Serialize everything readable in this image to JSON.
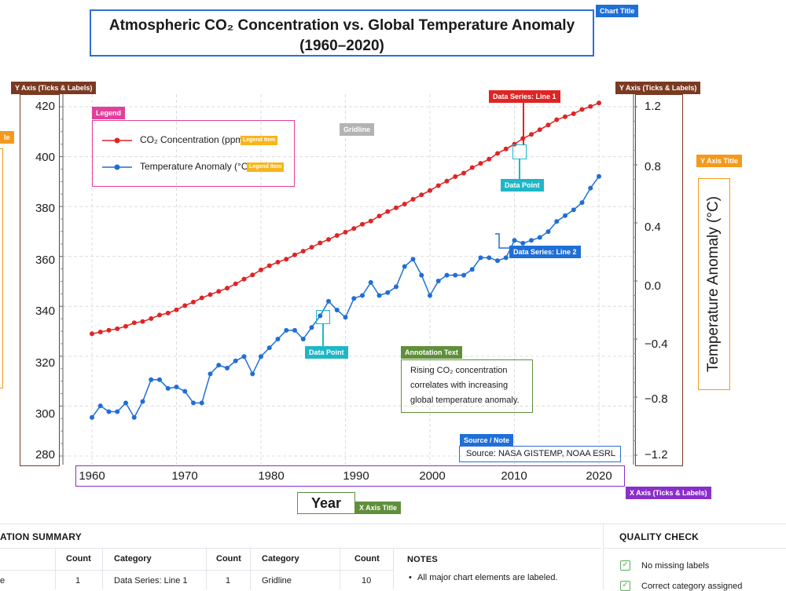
{
  "title_tag": "Chart Title",
  "title_line1": "Atmospheric CO₂ Concentration vs. Global Temperature Anomaly",
  "title_line2": "(1960–2020)",
  "tags": {
    "y_axis_left": "Y Axis (Ticks & Labels)",
    "y_axis_right": "Y Axis (Ticks & Labels)",
    "y_title_left": "le",
    "y_title_right": "Y Axis Title",
    "legend": "Legend",
    "legend_item": "Legend Item",
    "gridline": "Gridline",
    "series1": "Data Series: Line 1",
    "series2": "Data Series: Line 2",
    "data_point": "Data Point",
    "annotation": "Annotation Text",
    "source": "Source / Note",
    "x_axis": "X Axis (Ticks & Labels)",
    "x_title": "X Axis Title"
  },
  "legend": {
    "item1": "CO₂ Concentration (ppm)",
    "item2": "Temperature Anomaly (°C)"
  },
  "annotation_text": "Rising CO₂ concentration correlates with increasing global temperature anomaly.",
  "source_text": "Source: NASA GISTEMP, NOAA ESRL",
  "colors": {
    "co2": "#e02424",
    "temp": "#1f6fd6"
  },
  "chart_data": {
    "type": "line",
    "title": "Atmospheric CO₂ Concentration vs. Global Temperature Anomaly (1960–2020)",
    "xlabel": "Year",
    "ylabel": "",
    "ylabel_right": "Temperature Anomaly (°C)",
    "xlim": [
      1960,
      2020
    ],
    "xticks": [
      1960,
      1970,
      1980,
      1990,
      2000,
      2010,
      2020
    ],
    "ylim_left": [
      280,
      420
    ],
    "yticks_left": [
      280,
      300,
      320,
      340,
      360,
      380,
      400,
      420
    ],
    "ylim_right": [
      -1.2,
      1.2
    ],
    "yticks_right": [
      "1.2",
      "0.8",
      "0.4",
      "0.0",
      "−0.4",
      "−0.8",
      "−1.2"
    ],
    "yticks_right_values": [
      1.2,
      0.8,
      0.4,
      0.0,
      -0.4,
      -0.8,
      -1.2
    ],
    "grid": true,
    "legend_position": "top-left",
    "x": [
      1960,
      1961,
      1962,
      1963,
      1964,
      1965,
      1966,
      1967,
      1968,
      1969,
      1970,
      1971,
      1972,
      1973,
      1974,
      1975,
      1976,
      1977,
      1978,
      1979,
      1980,
      1981,
      1982,
      1983,
      1984,
      1985,
      1986,
      1987,
      1988,
      1989,
      1990,
      1991,
      1992,
      1993,
      1994,
      1995,
      1996,
      1997,
      1998,
      1999,
      2000,
      2001,
      2002,
      2003,
      2004,
      2005,
      2006,
      2007,
      2008,
      2009,
      2010,
      2011,
      2012,
      2013,
      2014,
      2015,
      2016,
      2017,
      2018,
      2019,
      2020
    ],
    "series": [
      {
        "name": "CO₂ Concentration (ppm)",
        "axis": "left",
        "values": [
          329.0,
          329.7,
          330.4,
          331.0,
          332.0,
          333.4,
          333.9,
          335.1,
          336.5,
          337.3,
          338.6,
          340.3,
          341.7,
          343.4,
          344.7,
          346.0,
          347.3,
          349.0,
          350.9,
          352.6,
          354.6,
          356.3,
          357.7,
          358.9,
          360.6,
          362.1,
          363.7,
          365.4,
          366.8,
          368.4,
          369.7,
          371.2,
          372.9,
          374.2,
          376.2,
          378.0,
          379.5,
          381.0,
          382.9,
          384.7,
          386.4,
          388.4,
          390.2,
          392.0,
          393.4,
          395.6,
          397.3,
          399.0,
          401.3,
          403.1,
          405.0,
          407.3,
          408.9,
          410.8,
          412.7,
          414.8,
          416.0,
          417.2,
          418.9,
          420.1,
          421.5
        ]
      },
      {
        "name": "Temperature Anomaly (°C)",
        "axis": "right",
        "values": [
          -0.94,
          -0.86,
          -0.9,
          -0.9,
          -0.84,
          -0.94,
          -0.83,
          -0.68,
          -0.68,
          -0.74,
          -0.73,
          -0.76,
          -0.84,
          -0.84,
          -0.64,
          -0.58,
          -0.6,
          -0.55,
          -0.52,
          -0.64,
          -0.52,
          -0.46,
          -0.4,
          -0.34,
          -0.34,
          -0.4,
          -0.32,
          -0.24,
          -0.14,
          -0.2,
          -0.25,
          -0.12,
          -0.1,
          -0.01,
          -0.1,
          -0.08,
          -0.04,
          0.1,
          0.15,
          0.04,
          -0.1,
          0.0,
          0.04,
          0.04,
          0.04,
          0.08,
          0.16,
          0.16,
          0.14,
          0.16,
          0.28,
          0.26,
          0.28,
          0.3,
          0.34,
          0.41,
          0.45,
          0.49,
          0.54,
          0.64,
          0.72
        ]
      }
    ]
  },
  "summary": {
    "title": "ATION SUMMARY",
    "headers": [
      "Count",
      "Category",
      "Count",
      "Category",
      "Count"
    ],
    "row1": [
      "1",
      "Data Series: Line 1",
      "1",
      "Gridline",
      "10"
    ],
    "cut_cell": "e",
    "notes_title": "NOTES",
    "note1": "All major chart elements are labeled."
  },
  "quality": {
    "title": "QUALITY CHECK",
    "item1": "No missing labels",
    "item2": "Correct category assigned"
  }
}
